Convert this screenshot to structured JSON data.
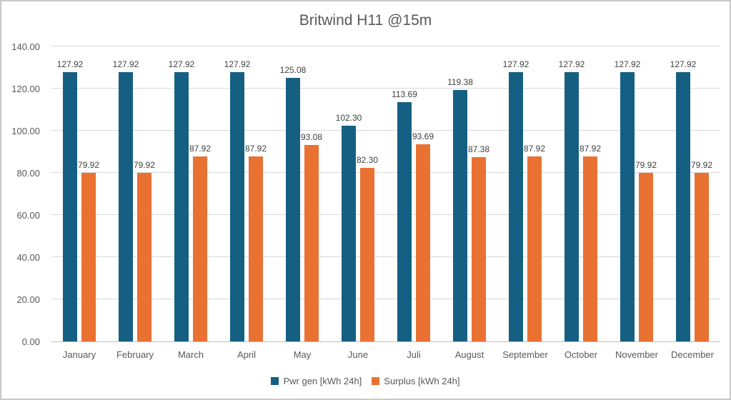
{
  "frame": {
    "background": "#FFFFFF",
    "border_color": "#C9C9C9"
  },
  "chart_data": {
    "type": "bar",
    "title": "Britwind H11 @15m",
    "categories": [
      "January",
      "February",
      "March",
      "April",
      "May",
      "June",
      "Juli",
      "August",
      "September",
      "October",
      "November",
      "December"
    ],
    "series": [
      {
        "name": "Pwr gen [kWh 24h]",
        "color": "#156082",
        "values": [
          127.92,
          127.92,
          127.92,
          127.92,
          125.08,
          102.3,
          113.69,
          119.38,
          127.92,
          127.92,
          127.92,
          127.92
        ],
        "labels": [
          "127.92",
          "127.92",
          "127.92",
          "127.92",
          "125.08",
          "102.30",
          "113.69",
          "119.38",
          "127.92",
          "127.92",
          "127.92",
          "127.92"
        ]
      },
      {
        "name": "Surplus [kWh 24h]",
        "color": "#E97132",
        "values": [
          79.92,
          79.92,
          87.92,
          87.92,
          93.08,
          82.3,
          93.69,
          87.38,
          87.92,
          87.92,
          79.92,
          79.92
        ],
        "labels": [
          "79.92",
          "79.92",
          "87.92",
          "87.92",
          "93.08",
          "82.30",
          "93.69",
          "87.38",
          "87.92",
          "87.92",
          "79.92",
          "79.92"
        ]
      }
    ],
    "xlabel": "",
    "ylabel": "",
    "ylim": [
      0,
      140
    ],
    "y_tick_step": 20,
    "y_tick_labels": [
      "0.00",
      "20.00",
      "40.00",
      "60.00",
      "80.00",
      "100.00",
      "120.00",
      "140.00"
    ],
    "grid": true,
    "legend_position": "bottom",
    "styles": {
      "grid_color": "#D9D9D9",
      "axis_line_color": "#BFBFBF",
      "axis_text_color": "#595959",
      "data_label_color": "#404040",
      "title_color": "#595959"
    }
  }
}
